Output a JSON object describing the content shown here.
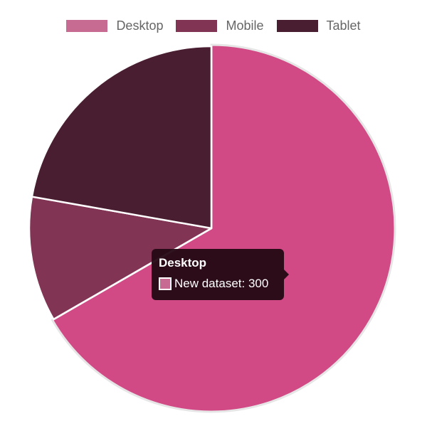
{
  "chart_data": {
    "type": "pie",
    "title": "",
    "categories": [
      "Desktop",
      "Mobile",
      "Tablet"
    ],
    "series": [
      {
        "name": "New dataset",
        "values": [
          300,
          50,
          100
        ]
      }
    ],
    "colors": [
      "#d24a85",
      "#823454",
      "#4a1e31"
    ],
    "legend_colors": [
      "#c86b93",
      "#823454",
      "#4a1e31"
    ],
    "legend_position": "top",
    "tooltip": {
      "title": "Desktop",
      "label": "New dataset: 300",
      "swatch_color": "#c86b93"
    }
  },
  "legend": {
    "items": [
      {
        "label": "Desktop",
        "color": "#c86b93"
      },
      {
        "label": "Mobile",
        "color": "#823454"
      },
      {
        "label": "Tablet",
        "color": "#4a1e31"
      }
    ]
  },
  "tooltip": {
    "title": "Desktop",
    "body": "New dataset: 300"
  }
}
